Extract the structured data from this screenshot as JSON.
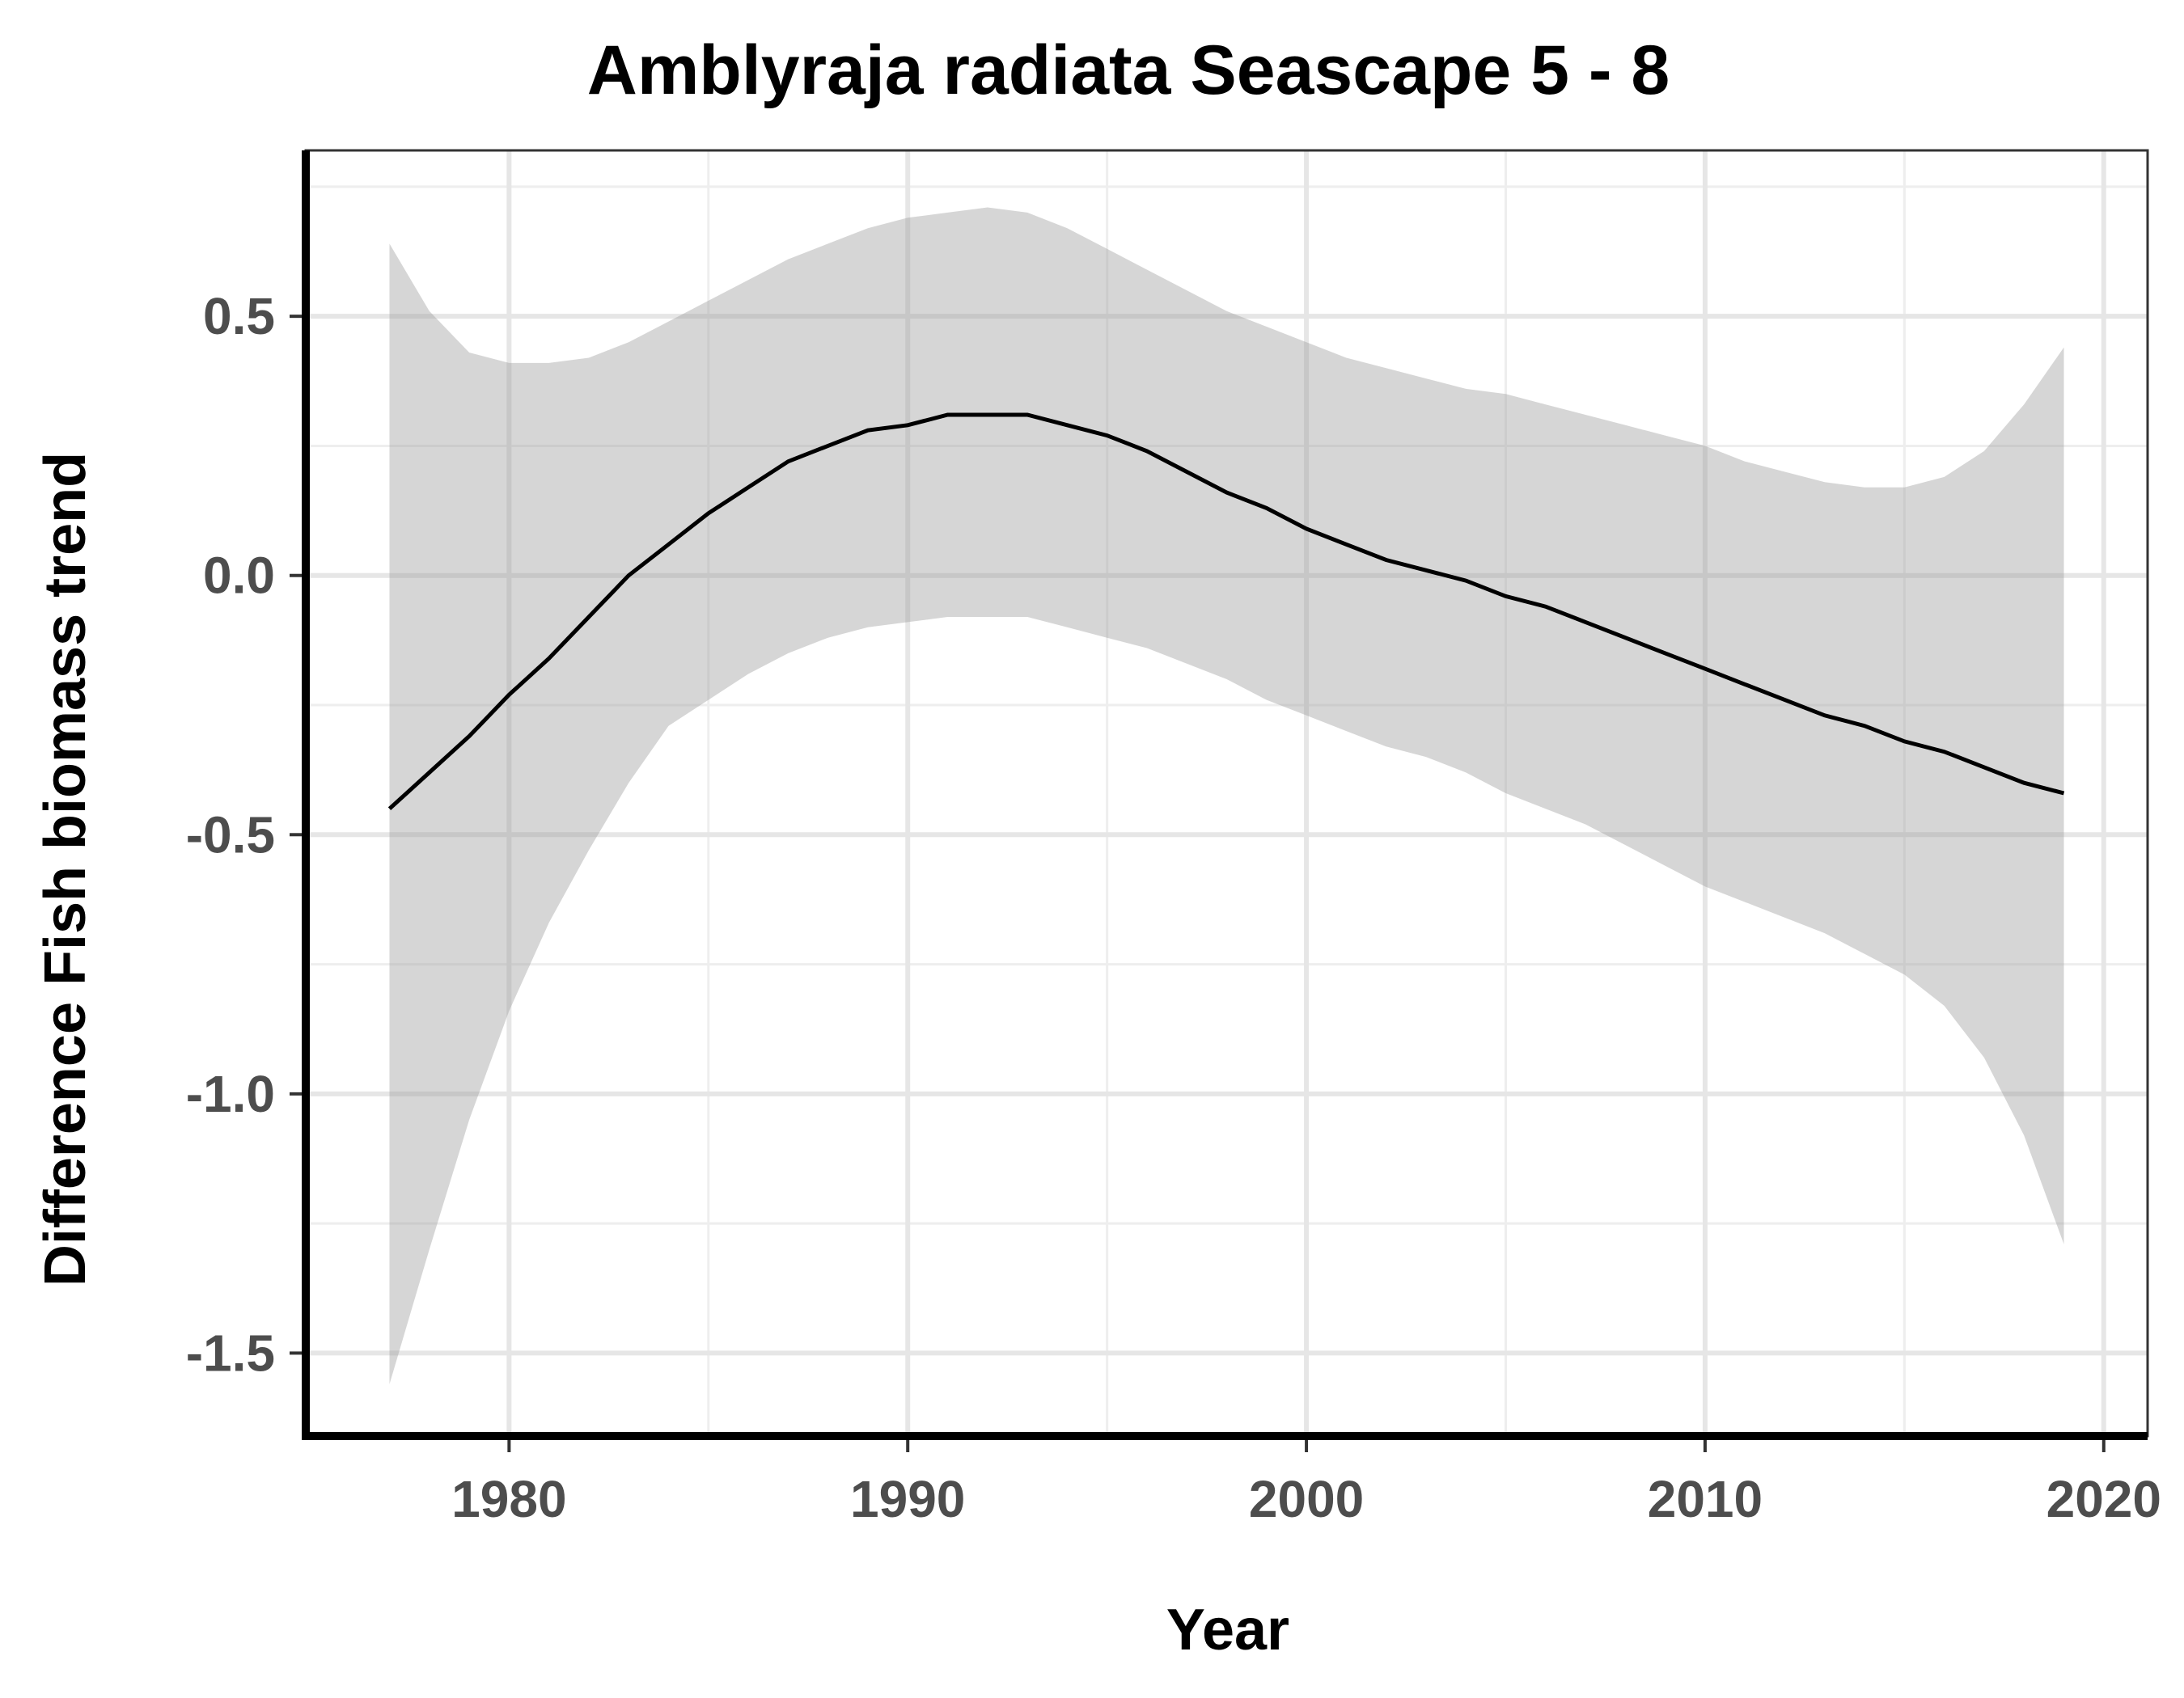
{
  "chart_data": {
    "type": "line",
    "title": "Amblyraja radiata Seascape 5 - 8",
    "xlabel": "Year",
    "ylabel": "Difference Fish biomass trend",
    "xlim": [
      1974.9,
      2021.1
    ],
    "ylim": [
      -1.66,
      0.82
    ],
    "x_ticks": [
      1980,
      1990,
      2000,
      2010,
      2020
    ],
    "x_tick_labels": [
      "1980",
      "1990",
      "2000",
      "2010",
      "2020"
    ],
    "y_ticks": [
      0.5,
      0.0,
      -0.5,
      -1.0,
      -1.5
    ],
    "y_tick_labels": [
      "0.5",
      "0.0",
      "-0.5",
      "-1.0",
      "-1.5"
    ],
    "grid": true,
    "legend": "none",
    "colors": {
      "line": "#000000",
      "ribbon": "#999999",
      "background": "#ffffff",
      "grid": "#e6e6e6"
    },
    "series": [
      {
        "x": [
          1977,
          1978,
          1979,
          1980,
          1981,
          1982,
          1983,
          1984,
          1985,
          1986,
          1987,
          1988,
          1989,
          1990,
          1991,
          1992,
          1993,
          1994,
          1995,
          1996,
          1997,
          1998,
          1999,
          2000,
          2001,
          2002,
          2003,
          2004,
          2005,
          2006,
          2007,
          2008,
          2009,
          2010,
          2011,
          2012,
          2013,
          2014,
          2015,
          2016,
          2017,
          2018,
          2019
        ],
        "y": [
          -0.45,
          -0.38,
          -0.31,
          -0.23,
          -0.16,
          -0.08,
          0.0,
          0.06,
          0.12,
          0.17,
          0.22,
          0.25,
          0.28,
          0.29,
          0.31,
          0.31,
          0.31,
          0.29,
          0.27,
          0.24,
          0.2,
          0.16,
          0.13,
          0.09,
          0.06,
          0.03,
          0.01,
          -0.01,
          -0.04,
          -0.06,
          -0.09,
          -0.12,
          -0.15,
          -0.18,
          -0.21,
          -0.24,
          -0.27,
          -0.29,
          -0.32,
          -0.34,
          -0.37,
          -0.4,
          -0.42
        ],
        "lower": [
          -1.56,
          -1.3,
          -1.05,
          -0.84,
          -0.67,
          -0.53,
          -0.4,
          -0.29,
          -0.24,
          -0.19,
          -0.15,
          -0.12,
          -0.1,
          -0.09,
          -0.08,
          -0.08,
          -0.08,
          -0.1,
          -0.12,
          -0.14,
          -0.17,
          -0.2,
          -0.24,
          -0.27,
          -0.3,
          -0.33,
          -0.35,
          -0.38,
          -0.42,
          -0.45,
          -0.48,
          -0.52,
          -0.56,
          -0.6,
          -0.63,
          -0.66,
          -0.69,
          -0.73,
          -0.77,
          -0.83,
          -0.93,
          -1.08,
          -1.29
        ],
        "upper": [
          0.64,
          0.51,
          0.43,
          0.41,
          0.41,
          0.42,
          0.45,
          0.49,
          0.53,
          0.57,
          0.61,
          0.64,
          0.67,
          0.69,
          0.7,
          0.71,
          0.7,
          0.67,
          0.63,
          0.59,
          0.55,
          0.51,
          0.48,
          0.45,
          0.42,
          0.4,
          0.38,
          0.36,
          0.35,
          0.33,
          0.31,
          0.29,
          0.27,
          0.25,
          0.22,
          0.2,
          0.18,
          0.17,
          0.17,
          0.19,
          0.24,
          0.33,
          0.44
        ]
      }
    ]
  }
}
